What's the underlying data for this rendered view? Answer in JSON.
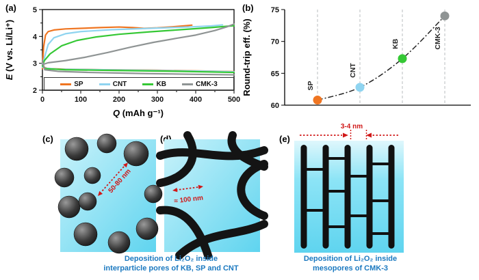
{
  "panel_labels": {
    "a": "(a)",
    "b": "(b)",
    "c": "(c)",
    "d": "(d)",
    "e": "(e)"
  },
  "chart_data": [
    {
      "id": "galvanostatic-profiles",
      "type": "line",
      "xlabel_symbol": "Q",
      "xlabel_rest": " (mAh g⁻¹)",
      "ylabel_symbol": "E",
      "ylabel_rest": " (V vs. Li/Li⁺)",
      "xlim": [
        0,
        500
      ],
      "ylim": [
        2,
        5
      ],
      "xticks": [
        0,
        100,
        200,
        300,
        400,
        500
      ],
      "yticks": [
        2,
        3,
        4,
        5
      ],
      "legend_position": "bottom-inside",
      "series": [
        {
          "name": "SP",
          "color": "#ef7521",
          "charge": [
            [
              0,
              2.8
            ],
            [
              3,
              3.6
            ],
            [
              8,
              4.05
            ],
            [
              15,
              4.18
            ],
            [
              30,
              4.24
            ],
            [
              60,
              4.28
            ],
            [
              100,
              4.3
            ],
            [
              150,
              4.33
            ],
            [
              200,
              4.35
            ],
            [
              235,
              4.33
            ],
            [
              265,
              4.3
            ],
            [
              300,
              4.32
            ],
            [
              340,
              4.36
            ],
            [
              375,
              4.4
            ],
            [
              390,
              4.42
            ]
          ],
          "discharge": [
            [
              0,
              3.05
            ],
            [
              4,
              2.85
            ],
            [
              15,
              2.8
            ],
            [
              60,
              2.78
            ],
            [
              160,
              2.76
            ],
            [
              300,
              2.74
            ],
            [
              430,
              2.71
            ],
            [
              500,
              2.69
            ]
          ]
        },
        {
          "name": "CNT",
          "color": "#8fd4f0",
          "charge": [
            [
              0,
              2.85
            ],
            [
              5,
              3.2
            ],
            [
              15,
              3.7
            ],
            [
              30,
              3.95
            ],
            [
              60,
              4.1
            ],
            [
              100,
              4.18
            ],
            [
              180,
              4.25
            ],
            [
              280,
              4.3
            ],
            [
              380,
              4.35
            ],
            [
              440,
              4.39
            ],
            [
              470,
              4.43
            ]
          ],
          "discharge": [
            [
              0,
              3.0
            ],
            [
              5,
              2.82
            ],
            [
              40,
              2.78
            ],
            [
              150,
              2.76
            ],
            [
              300,
              2.73
            ],
            [
              450,
              2.7
            ],
            [
              500,
              2.68
            ]
          ]
        },
        {
          "name": "KB",
          "color": "#35c835",
          "charge": [
            [
              0,
              2.9
            ],
            [
              5,
              3.1
            ],
            [
              20,
              3.35
            ],
            [
              50,
              3.65
            ],
            [
              90,
              3.85
            ],
            [
              140,
              3.98
            ],
            [
              200,
              4.08
            ],
            [
              280,
              4.17
            ],
            [
              360,
              4.25
            ],
            [
              440,
              4.33
            ],
            [
              500,
              4.4
            ]
          ],
          "discharge": [
            [
              0,
              2.95
            ],
            [
              6,
              2.8
            ],
            [
              60,
              2.76
            ],
            [
              200,
              2.73
            ],
            [
              360,
              2.7
            ],
            [
              500,
              2.66
            ]
          ]
        },
        {
          "name": "CMK-3",
          "color": "#8f9494",
          "charge": [
            [
              0,
              2.95
            ],
            [
              15,
              3.02
            ],
            [
              60,
              3.1
            ],
            [
              110,
              3.22
            ],
            [
              170,
              3.4
            ],
            [
              230,
              3.6
            ],
            [
              290,
              3.78
            ],
            [
              350,
              3.93
            ],
            [
              400,
              4.05
            ],
            [
              450,
              4.22
            ],
            [
              480,
              4.35
            ],
            [
              500,
              4.46
            ]
          ],
          "discharge": [
            [
              0,
              3.1
            ],
            [
              6,
              2.76
            ],
            [
              40,
              2.7
            ],
            [
              120,
              2.66
            ],
            [
              260,
              2.62
            ],
            [
              400,
              2.59
            ],
            [
              500,
              2.57
            ]
          ]
        }
      ]
    },
    {
      "id": "round-trip-efficiency",
      "type": "scatter",
      "ylabel": "Round-trip eff. (%)",
      "ylim": [
        60,
        75
      ],
      "yticks": [
        60,
        65,
        70,
        75
      ],
      "categories": [
        "SP",
        "CNT",
        "KB",
        "CMK-3"
      ],
      "values": [
        60.8,
        62.8,
        67.3,
        74.0
      ],
      "colors": [
        "#ef7521",
        "#8fd4f0",
        "#35c835",
        "#8f9494"
      ],
      "line_style": "dash-dot",
      "grid": "vertical-dashed"
    }
  ],
  "schematics": {
    "c": {
      "annotation": "50-80 nm"
    },
    "d": {
      "annotation": "≈ 100 nm"
    },
    "e": {
      "annotation": "3-4 nm"
    }
  },
  "captions": {
    "left_line1": "Deposition of Li₂O₂ inside",
    "left_line2": "interparticle pores of KB, SP and CNT",
    "right_line1": "Deposition of Li₂O₂ inside",
    "right_line2": "mesopores of CMK-3"
  },
  "colors": {
    "sp": "#ef7521",
    "cnt": "#8fd4f0",
    "kb": "#35c835",
    "cmk3": "#8f9494",
    "caption_blue": "#1b79c0",
    "annotation_red": "#d01818",
    "pore_cyan": "#6fdaf3"
  }
}
